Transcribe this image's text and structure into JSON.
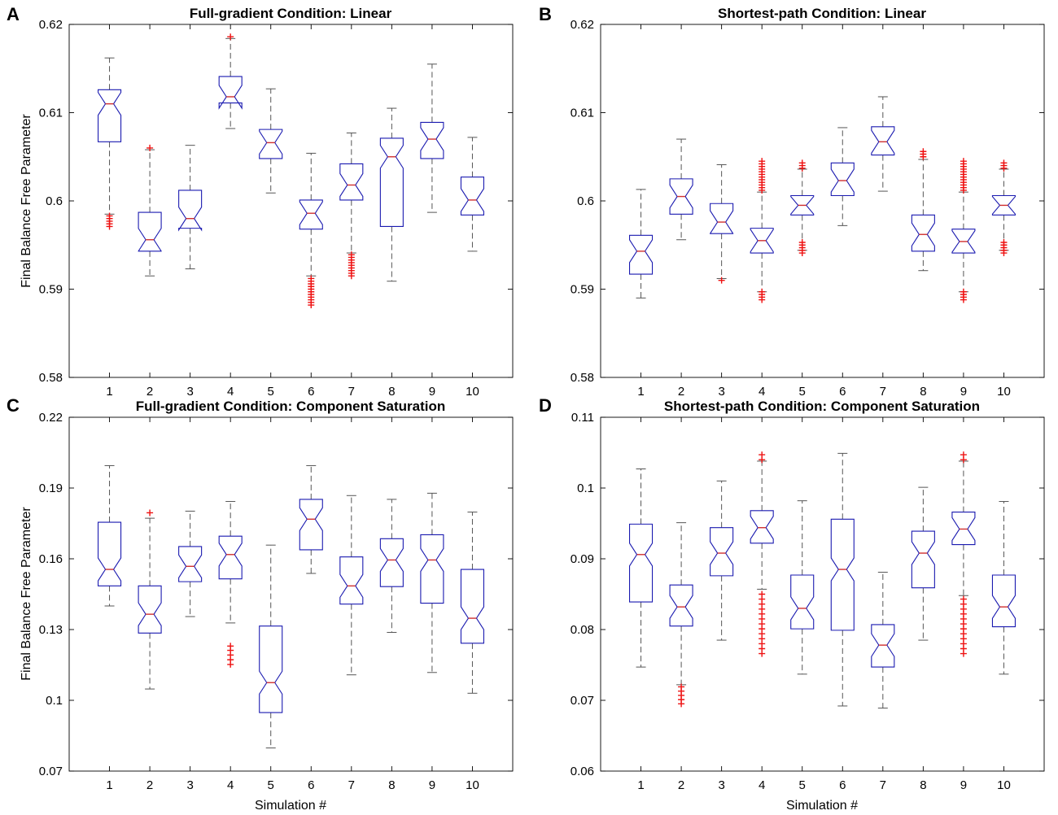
{
  "figure": {
    "ylabel": "Final Balance Free Parameter",
    "xlabel": "Simulation #"
  },
  "colors": {
    "box": "#1a1ab0",
    "median": "#d03030",
    "whisker": "#555555",
    "outlier": "#ee1111",
    "axis": "#000000"
  },
  "chart_data": [
    {
      "type": "box",
      "panel": "A",
      "title": "Full-gradient Condition: Linear",
      "ylim": [
        0.58,
        0.62
      ],
      "yticks": [
        0.58,
        0.59,
        0.6,
        0.61,
        0.62
      ],
      "ytick_labels": [
        "0.58",
        "0.59",
        "0.6",
        "0.61",
        "0.62"
      ],
      "categories": [
        "1",
        "2",
        "3",
        "4",
        "5",
        "6",
        "7",
        "8",
        "9",
        "10"
      ],
      "boxes": [
        {
          "sim": "1",
          "low": 0.5985,
          "q1": 0.6067,
          "med": 0.611,
          "q3": 0.6126,
          "high": 0.6162,
          "outliers": [
            0.5971,
            0.5974,
            0.5977,
            0.598,
            0.5983
          ]
        },
        {
          "sim": "2",
          "low": 0.5915,
          "q1": 0.5943,
          "med": 0.5956,
          "q3": 0.5987,
          "high": 0.6058,
          "outliers": [
            0.606
          ]
        },
        {
          "sim": "3",
          "low": 0.5923,
          "q1": 0.5969,
          "med": 0.598,
          "q3": 0.6012,
          "high": 0.6063,
          "outliers": []
        },
        {
          "sim": "4",
          "low": 0.6082,
          "q1": 0.6111,
          "med": 0.6118,
          "q3": 0.6141,
          "high": 0.6184,
          "outliers": [
            0.6186
          ]
        },
        {
          "sim": "5",
          "low": 0.6009,
          "q1": 0.6048,
          "med": 0.6066,
          "q3": 0.6081,
          "high": 0.6127,
          "outliers": []
        },
        {
          "sim": "6",
          "low": 0.5915,
          "q1": 0.5968,
          "med": 0.5986,
          "q3": 0.6001,
          "high": 0.6054,
          "outliers": [
            0.5882,
            0.5885,
            0.5888,
            0.5891,
            0.5894,
            0.5897,
            0.59,
            0.5903,
            0.5906,
            0.5909,
            0.5912
          ]
        },
        {
          "sim": "7",
          "low": 0.5941,
          "q1": 0.6001,
          "med": 0.6018,
          "q3": 0.6042,
          "high": 0.6077,
          "outliers": [
            0.5915,
            0.5918,
            0.5921,
            0.5924,
            0.5927,
            0.593,
            0.5933,
            0.5936,
            0.5939
          ]
        },
        {
          "sim": "8",
          "low": 0.5909,
          "q1": 0.5971,
          "med": 0.605,
          "q3": 0.6071,
          "high": 0.6105,
          "outliers": []
        },
        {
          "sim": "9",
          "low": 0.5987,
          "q1": 0.6048,
          "med": 0.607,
          "q3": 0.6089,
          "high": 0.6155,
          "outliers": []
        },
        {
          "sim": "10",
          "low": 0.5943,
          "q1": 0.5984,
          "med": 0.6001,
          "q3": 0.6027,
          "high": 0.6072,
          "outliers": []
        }
      ]
    },
    {
      "type": "box",
      "panel": "B",
      "title": "Shortest-path Condition: Linear",
      "ylim": [
        0.58,
        0.62
      ],
      "yticks": [
        0.58,
        0.59,
        0.6,
        0.61,
        0.62
      ],
      "ytick_labels": [
        "0.58",
        "0.59",
        "0.6",
        "0.61",
        "0.62"
      ],
      "categories": [
        "1",
        "2",
        "3",
        "4",
        "5",
        "6",
        "7",
        "8",
        "9",
        "10"
      ],
      "boxes": [
        {
          "sim": "1",
          "low": 0.589,
          "q1": 0.5917,
          "med": 0.5943,
          "q3": 0.5961,
          "high": 0.6013,
          "outliers": []
        },
        {
          "sim": "2",
          "low": 0.5956,
          "q1": 0.5985,
          "med": 0.6005,
          "q3": 0.6025,
          "high": 0.607,
          "outliers": []
        },
        {
          "sim": "3",
          "low": 0.5912,
          "q1": 0.5963,
          "med": 0.5976,
          "q3": 0.5997,
          "high": 0.6041,
          "outliers": [
            0.591
          ]
        },
        {
          "sim": "4",
          "low": 0.5897,
          "q1": 0.5941,
          "med": 0.5955,
          "q3": 0.5969,
          "high": 0.601,
          "outliers": [
            0.5888,
            0.5891,
            0.5894,
            0.5897,
            0.6012,
            0.6015,
            0.6018,
            0.6021,
            0.6024,
            0.6027,
            0.603,
            0.6033,
            0.6036,
            0.6039,
            0.6042,
            0.6045
          ]
        },
        {
          "sim": "5",
          "low": 0.5944,
          "q1": 0.5984,
          "med": 0.5995,
          "q3": 0.6006,
          "high": 0.6036,
          "outliers": [
            0.5941,
            0.5944,
            0.5947,
            0.595,
            0.5953,
            0.6037,
            0.604,
            0.6043
          ]
        },
        {
          "sim": "6",
          "low": 0.5972,
          "q1": 0.6006,
          "med": 0.6023,
          "q3": 0.6043,
          "high": 0.6083,
          "outliers": []
        },
        {
          "sim": "7",
          "low": 0.6011,
          "q1": 0.6052,
          "med": 0.6067,
          "q3": 0.6084,
          "high": 0.6118,
          "outliers": []
        },
        {
          "sim": "8",
          "low": 0.5921,
          "q1": 0.5943,
          "med": 0.5962,
          "q3": 0.5984,
          "high": 0.6047,
          "outliers": [
            0.605,
            0.6053,
            0.6056
          ]
        },
        {
          "sim": "9",
          "low": 0.5897,
          "q1": 0.5941,
          "med": 0.5954,
          "q3": 0.5968,
          "high": 0.601,
          "outliers": [
            0.5888,
            0.5891,
            0.5894,
            0.5897,
            0.6012,
            0.6015,
            0.6018,
            0.6021,
            0.6024,
            0.6027,
            0.603,
            0.6033,
            0.6036,
            0.6039,
            0.6042,
            0.6045
          ]
        },
        {
          "sim": "10",
          "low": 0.5944,
          "q1": 0.5984,
          "med": 0.5995,
          "q3": 0.6006,
          "high": 0.6036,
          "outliers": [
            0.5941,
            0.5944,
            0.5947,
            0.595,
            0.5953,
            0.6037,
            0.604,
            0.6043
          ]
        }
      ]
    },
    {
      "type": "box",
      "panel": "C",
      "title": "Full-gradient Condition: Component Saturation",
      "ylim": [
        0.07,
        0.22
      ],
      "yticks": [
        0.07,
        0.1,
        0.13,
        0.16,
        0.19,
        0.22
      ],
      "ytick_labels": [
        "0.07",
        "0.1",
        "0.13",
        "0.16",
        "0.19",
        "0.22"
      ],
      "categories": [
        "1",
        "2",
        "3",
        "4",
        "5",
        "6",
        "7",
        "8",
        "9",
        "10"
      ],
      "boxes": [
        {
          "sim": "1",
          "low": 0.14,
          "q1": 0.1485,
          "med": 0.1555,
          "q3": 0.1755,
          "high": 0.1995,
          "outliers": []
        },
        {
          "sim": "2",
          "low": 0.1048,
          "q1": 0.1285,
          "med": 0.1365,
          "q3": 0.1485,
          "high": 0.1772,
          "outliers": [
            0.1795
          ]
        },
        {
          "sim": "3",
          "low": 0.1355,
          "q1": 0.1503,
          "med": 0.1568,
          "q3": 0.1652,
          "high": 0.1802,
          "outliers": []
        },
        {
          "sim": "4",
          "low": 0.1328,
          "q1": 0.1515,
          "med": 0.1618,
          "q3": 0.1696,
          "high": 0.1843,
          "outliers": [
            0.1152,
            0.1172,
            0.1192,
            0.1212,
            0.123
          ]
        },
        {
          "sim": "5",
          "low": 0.0798,
          "q1": 0.0948,
          "med": 0.1075,
          "q3": 0.1315,
          "high": 0.1658,
          "outliers": []
        },
        {
          "sim": "6",
          "low": 0.1538,
          "q1": 0.1638,
          "med": 0.1768,
          "q3": 0.1852,
          "high": 0.1995,
          "outliers": []
        },
        {
          "sim": "7",
          "low": 0.1108,
          "q1": 0.1408,
          "med": 0.1485,
          "q3": 0.1608,
          "high": 0.1868,
          "outliers": []
        },
        {
          "sim": "8",
          "low": 0.1288,
          "q1": 0.1482,
          "med": 0.1595,
          "q3": 0.1685,
          "high": 0.1852,
          "outliers": []
        },
        {
          "sim": "9",
          "low": 0.1118,
          "q1": 0.1412,
          "med": 0.1595,
          "q3": 0.1702,
          "high": 0.1878,
          "outliers": []
        },
        {
          "sim": "10",
          "low": 0.103,
          "q1": 0.1242,
          "med": 0.1348,
          "q3": 0.1555,
          "high": 0.1798,
          "outliers": []
        }
      ]
    },
    {
      "type": "box",
      "panel": "D",
      "title": "Shortest-path Condition: Component Saturation",
      "ylim": [
        0.06,
        0.11
      ],
      "yticks": [
        0.06,
        0.07,
        0.08,
        0.09,
        0.1,
        0.11
      ],
      "ytick_labels": [
        "0.06",
        "0.07",
        "0.08",
        "0.09",
        "0.1",
        "0.11"
      ],
      "categories": [
        "1",
        "2",
        "3",
        "4",
        "5",
        "6",
        "7",
        "8",
        "9",
        "10"
      ],
      "boxes": [
        {
          "sim": "1",
          "low": 0.0747,
          "q1": 0.0839,
          "med": 0.0906,
          "q3": 0.0949,
          "high": 0.1027,
          "outliers": []
        },
        {
          "sim": "2",
          "low": 0.0722,
          "q1": 0.0805,
          "med": 0.0832,
          "q3": 0.0863,
          "high": 0.0951,
          "outliers": [
            0.0695,
            0.0701,
            0.0707,
            0.0713,
            0.0719
          ]
        },
        {
          "sim": "3",
          "low": 0.0785,
          "q1": 0.0876,
          "med": 0.0908,
          "q3": 0.0944,
          "high": 0.101,
          "outliers": []
        },
        {
          "sim": "4",
          "low": 0.0857,
          "q1": 0.0922,
          "med": 0.0944,
          "q3": 0.0968,
          "high": 0.1038,
          "outliers": [
            0.0766,
            0.0773,
            0.078,
            0.0787,
            0.0794,
            0.0801,
            0.0808,
            0.0815,
            0.0822,
            0.0829,
            0.0836,
            0.0843,
            0.085,
            0.104,
            0.1047
          ]
        },
        {
          "sim": "5",
          "low": 0.0737,
          "q1": 0.0801,
          "med": 0.083,
          "q3": 0.0877,
          "high": 0.0982,
          "outliers": []
        },
        {
          "sim": "6",
          "low": 0.0692,
          "q1": 0.0799,
          "med": 0.0885,
          "q3": 0.0956,
          "high": 0.1049,
          "outliers": []
        },
        {
          "sim": "7",
          "low": 0.0689,
          "q1": 0.0747,
          "med": 0.0778,
          "q3": 0.0807,
          "high": 0.0881,
          "outliers": []
        },
        {
          "sim": "8",
          "low": 0.0785,
          "q1": 0.0859,
          "med": 0.0908,
          "q3": 0.0939,
          "high": 0.1001,
          "outliers": []
        },
        {
          "sim": "9",
          "low": 0.0848,
          "q1": 0.092,
          "med": 0.0942,
          "q3": 0.0966,
          "high": 0.1038,
          "outliers": [
            0.0766,
            0.0773,
            0.078,
            0.0787,
            0.0794,
            0.0801,
            0.0808,
            0.0815,
            0.0822,
            0.0829,
            0.0836,
            0.0843,
            0.104,
            0.1047
          ]
        },
        {
          "sim": "10",
          "low": 0.0737,
          "q1": 0.0804,
          "med": 0.0832,
          "q3": 0.0877,
          "high": 0.0981,
          "outliers": []
        }
      ]
    }
  ]
}
